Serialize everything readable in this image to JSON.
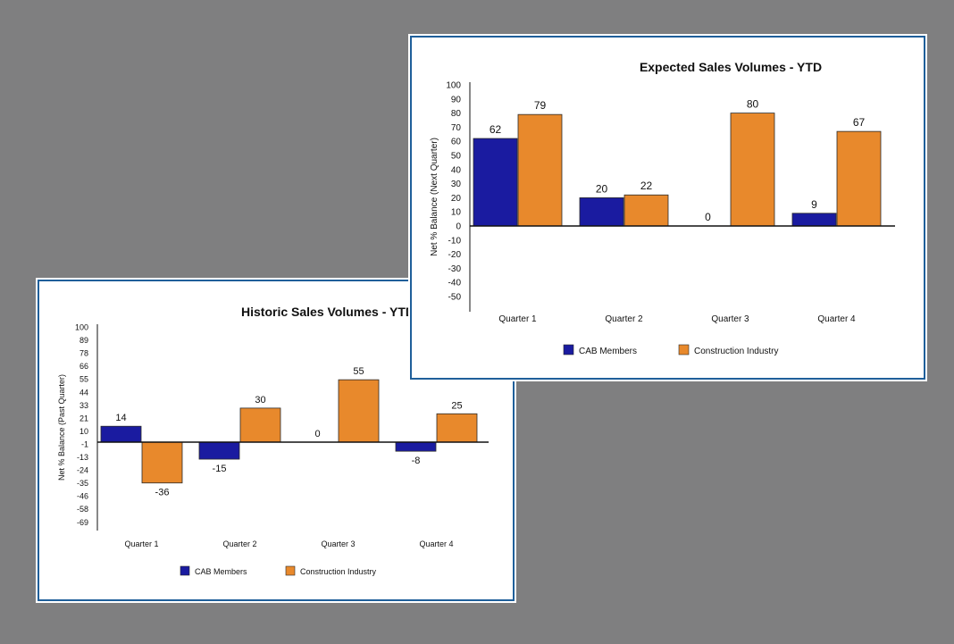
{
  "colors": {
    "background": "#7f7f80",
    "border": "#1f5f9a",
    "cab": "#1a1ba0",
    "industry": "#e8892c"
  },
  "chart_data": [
    {
      "id": "historic",
      "type": "bar",
      "title": "Historic Sales Volumes - YTD",
      "ylabel": "Net % Balance (Past Quarter)",
      "xlabel": "",
      "categories": [
        "Quarter 1",
        "Quarter 2",
        "Quarter 3",
        "Quarter 4"
      ],
      "series": [
        {
          "name": "CAB Members",
          "values": [
            14,
            -15,
            0,
            -8
          ]
        },
        {
          "name": "Construction Industry",
          "values": [
            -36,
            30,
            55,
            25
          ]
        }
      ],
      "yticks": [
        "100",
        "89",
        "78",
        "66",
        "55",
        "44",
        "33",
        "21",
        "10",
        "-1",
        "-13",
        "-24",
        "-35",
        "-46",
        "-58",
        "-69"
      ],
      "ylim": [
        -69,
        100
      ],
      "legend": "bottom",
      "grid": false
    },
    {
      "id": "expected",
      "type": "bar",
      "title": "Expected Sales Volumes - YTD",
      "ylabel": "Net % Balance (Next Quarter)",
      "xlabel": "",
      "categories": [
        "Quarter 1",
        "Quarter 2",
        "Quarter 3",
        "Quarter 4"
      ],
      "series": [
        {
          "name": "CAB Members",
          "values": [
            62,
            20,
            0,
            9
          ]
        },
        {
          "name": "Construction Industry",
          "values": [
            79,
            22,
            80,
            67
          ]
        }
      ],
      "yticks": [
        "100",
        "90",
        "80",
        "70",
        "60",
        "50",
        "40",
        "30",
        "20",
        "10",
        "0",
        "-10",
        "-20",
        "-30",
        "-40",
        "-50"
      ],
      "ylim": [
        -50,
        100
      ],
      "legend": "bottom",
      "grid": false
    }
  ]
}
